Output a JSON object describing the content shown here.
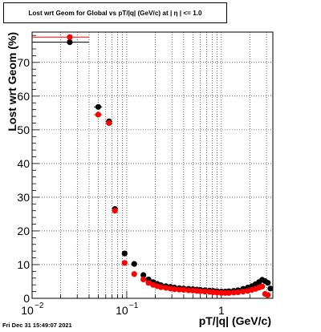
{
  "stamp": "Fri Dec 31 15:49:07 2021",
  "chart_data": {
    "type": "scatter",
    "title": "Lost wrt Geom for Global vs pT/|q| (GeV/c) at |  η | <= 1.0",
    "xlabel": "pT/|q| (GeV/c)",
    "ylabel": "Lost wrt Geom (%)",
    "x_scale": "log",
    "xlim": [
      0.01,
      3.5
    ],
    "ylim": [
      0,
      79
    ],
    "y_ticks": [
      0,
      10,
      20,
      30,
      40,
      50,
      60,
      70
    ],
    "y_tick_labels": [
      "0",
      "10",
      "20",
      "30",
      "40",
      "50",
      "60",
      "70"
    ],
    "x_tick_labels": [
      {
        "value": 0.01,
        "label": "10",
        "exp": "−2"
      },
      {
        "value": 0.1,
        "label": "10",
        "exp": "−1"
      },
      {
        "value": 1,
        "label": "1",
        "exp": ""
      }
    ],
    "grid": true,
    "series": [
      {
        "color": "#000000",
        "points": [
          {
            "x": 0.025,
            "y": 76.0,
            "xerr": [
              0.01,
              0.04
            ]
          },
          {
            "x": 0.05,
            "y": 56.8,
            "xerr": [
              0.045,
              0.055
            ]
          },
          {
            "x": 0.065,
            "y": 52.5,
            "xerr": [
              0.06,
              0.07
            ]
          },
          {
            "x": 0.075,
            "y": 26.5,
            "xerr": [
              0.07,
              0.08
            ]
          },
          {
            "x": 0.095,
            "y": 13.3,
            "xerr": [
              0.09,
              0.1
            ]
          },
          {
            "x": 0.12,
            "y": 10.2
          },
          {
            "x": 0.15,
            "y": 6.9
          },
          {
            "x": 0.17,
            "y": 5.6
          },
          {
            "x": 0.19,
            "y": 4.8
          },
          {
            "x": 0.21,
            "y": 4.3
          },
          {
            "x": 0.23,
            "y": 3.9
          },
          {
            "x": 0.26,
            "y": 3.6
          },
          {
            "x": 0.29,
            "y": 3.4
          },
          {
            "x": 0.32,
            "y": 3.2
          },
          {
            "x": 0.36,
            "y": 3.0
          },
          {
            "x": 0.4,
            "y": 2.9
          },
          {
            "x": 0.45,
            "y": 2.8
          },
          {
            "x": 0.5,
            "y": 2.7
          },
          {
            "x": 0.55,
            "y": 2.6
          },
          {
            "x": 0.6,
            "y": 2.5
          },
          {
            "x": 0.67,
            "y": 2.4
          },
          {
            "x": 0.75,
            "y": 2.3
          },
          {
            "x": 0.82,
            "y": 2.2
          },
          {
            "x": 0.9,
            "y": 2.1
          },
          {
            "x": 1.0,
            "y": 2.0
          },
          {
            "x": 1.1,
            "y": 2.0
          },
          {
            "x": 1.2,
            "y": 2.1
          },
          {
            "x": 1.35,
            "y": 2.2
          },
          {
            "x": 1.5,
            "y": 2.4
          },
          {
            "x": 1.7,
            "y": 2.8
          },
          {
            "x": 1.9,
            "y": 3.2
          },
          {
            "x": 2.1,
            "y": 3.6
          },
          {
            "x": 2.3,
            "y": 4.2
          },
          {
            "x": 2.5,
            "y": 4.8
          },
          {
            "x": 2.7,
            "y": 5.5
          },
          {
            "x": 2.9,
            "y": 5.1
          },
          {
            "x": 3.1,
            "y": 4.6
          },
          {
            "x": 3.3,
            "y": 2.9
          }
        ]
      },
      {
        "color": "#ff0000",
        "points": [
          {
            "x": 0.025,
            "y": 77.5,
            "xerr": [
              0.01,
              0.04
            ]
          },
          {
            "x": 0.05,
            "y": 54.5,
            "xerr": [
              0.045,
              0.055
            ]
          },
          {
            "x": 0.065,
            "y": 52.0,
            "xerr": [
              0.06,
              0.07
            ]
          },
          {
            "x": 0.075,
            "y": 26.0,
            "xerr": [
              0.07,
              0.08
            ]
          },
          {
            "x": 0.095,
            "y": 10.5,
            "xerr": [
              0.09,
              0.1
            ]
          },
          {
            "x": 0.12,
            "y": 7.2
          },
          {
            "x": 0.15,
            "y": 5.6
          },
          {
            "x": 0.17,
            "y": 4.6
          },
          {
            "x": 0.19,
            "y": 4.0
          },
          {
            "x": 0.21,
            "y": 3.6
          },
          {
            "x": 0.23,
            "y": 3.3
          },
          {
            "x": 0.26,
            "y": 3.1
          },
          {
            "x": 0.29,
            "y": 2.9
          },
          {
            "x": 0.32,
            "y": 2.7
          },
          {
            "x": 0.36,
            "y": 2.6
          },
          {
            "x": 0.4,
            "y": 2.5
          },
          {
            "x": 0.45,
            "y": 2.4
          },
          {
            "x": 0.5,
            "y": 2.3
          },
          {
            "x": 0.55,
            "y": 2.2
          },
          {
            "x": 0.6,
            "y": 2.1
          },
          {
            "x": 0.67,
            "y": 2.0
          },
          {
            "x": 0.75,
            "y": 1.9
          },
          {
            "x": 0.82,
            "y": 1.8
          },
          {
            "x": 0.9,
            "y": 1.7
          },
          {
            "x": 1.0,
            "y": 1.6
          },
          {
            "x": 1.1,
            "y": 1.6
          },
          {
            "x": 1.2,
            "y": 1.6
          },
          {
            "x": 1.35,
            "y": 1.7
          },
          {
            "x": 1.5,
            "y": 1.8
          },
          {
            "x": 1.7,
            "y": 2.0
          },
          {
            "x": 1.9,
            "y": 2.2
          },
          {
            "x": 2.1,
            "y": 2.5
          },
          {
            "x": 2.3,
            "y": 2.8
          },
          {
            "x": 2.5,
            "y": 3.2
          },
          {
            "x": 2.7,
            "y": 3.5
          },
          {
            "x": 2.9,
            "y": 1.3
          },
          {
            "x": 3.1,
            "y": 1.0
          }
        ]
      }
    ]
  }
}
